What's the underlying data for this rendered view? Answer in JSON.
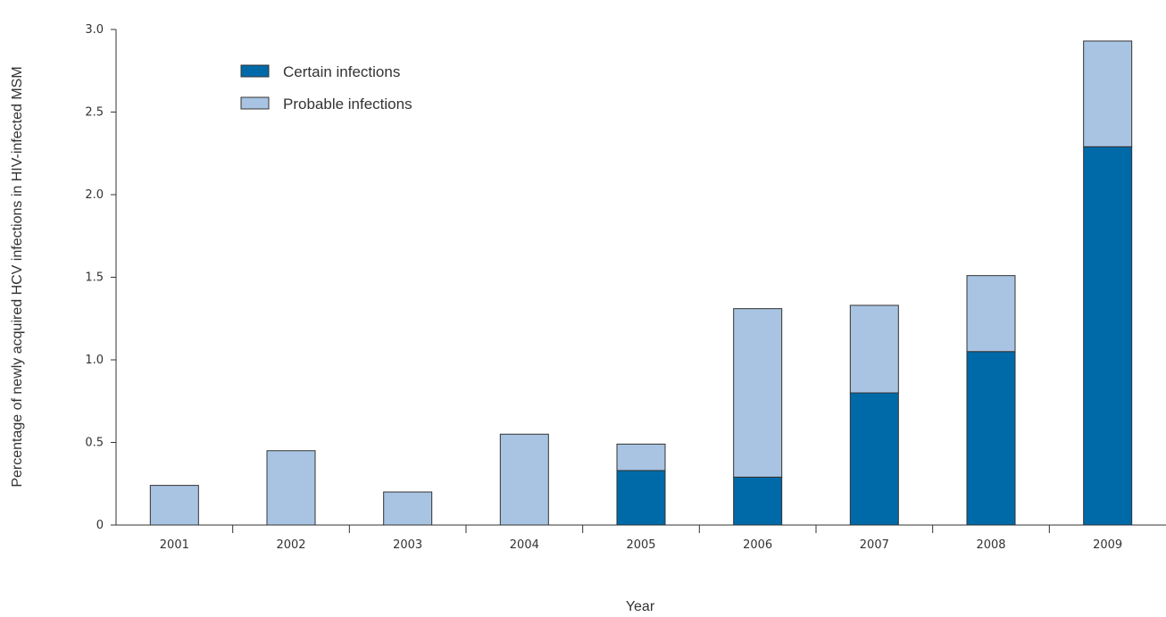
{
  "chart_data": {
    "type": "bar",
    "stacked": true,
    "title": "",
    "xlabel": "Year",
    "ylabel": "Percentage of newly acquired HCV infections in HIV-infected MSM",
    "categories": [
      "2001",
      "2002",
      "2003",
      "2004",
      "2005",
      "2006",
      "2007",
      "2008",
      "2009"
    ],
    "series": [
      {
        "name": "Certain infections",
        "color": "#006aa9",
        "values": [
          0,
          0,
          0,
          0,
          0.33,
          0.29,
          0.8,
          1.05,
          2.29
        ]
      },
      {
        "name": "Probable infections",
        "color": "#a8c4e2",
        "values": [
          0.24,
          0.45,
          0.2,
          0.55,
          0.16,
          1.02,
          0.53,
          0.46,
          0.64
        ]
      }
    ],
    "ylim": [
      0,
      3.0
    ],
    "yticks": [
      "0",
      "0.5",
      "1.0",
      "1.5",
      "2.0",
      "2.5",
      "3.0"
    ],
    "ytick_values": [
      0,
      0.5,
      1.0,
      1.5,
      2.0,
      2.5,
      3.0
    ],
    "grid": false,
    "legend_position": "top-left"
  }
}
